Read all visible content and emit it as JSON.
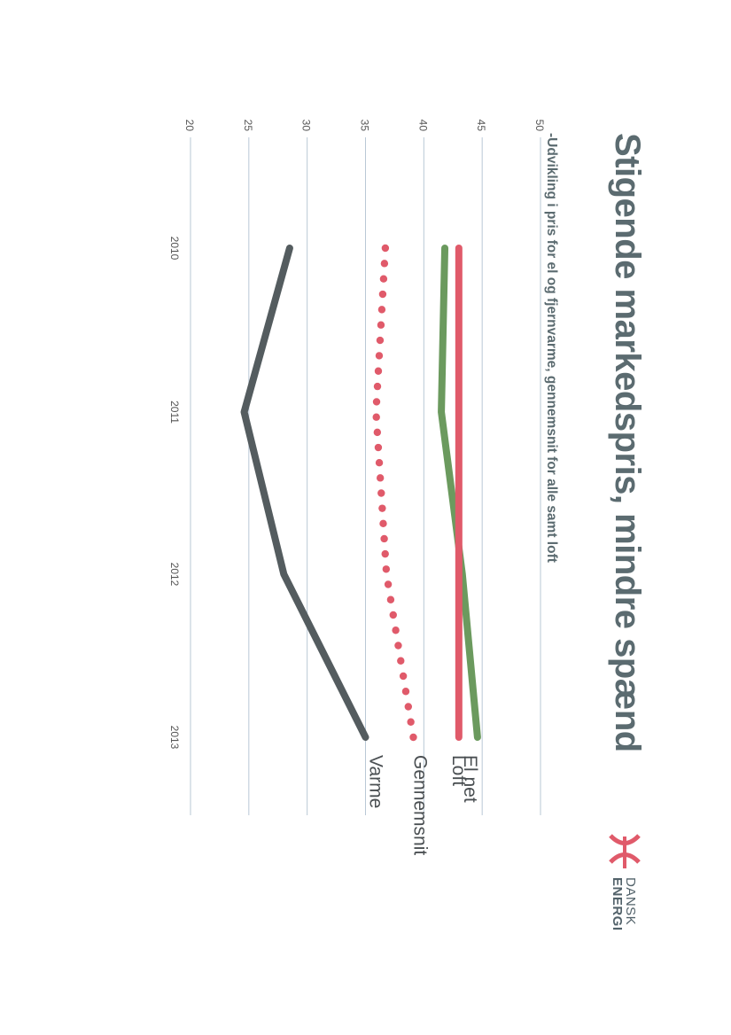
{
  "chart_data": {
    "type": "line",
    "title": "Stigende markedspris, mindre spænd",
    "subtitle": "-Udvikling i pris for el og fjernvarme, gennemsnit for alle samt loft",
    "x": [
      "2010",
      "2011",
      "2012",
      "2013"
    ],
    "ylim": [
      20,
      50
    ],
    "yticks": [
      20,
      25,
      30,
      35,
      40,
      45,
      50
    ],
    "grid": true,
    "legend": "end-of-line labels",
    "series": [
      {
        "name": "El net",
        "values": [
          41.8,
          41.5,
          43.3,
          44.6
        ],
        "color": "#6b9a5e",
        "style": "solid"
      },
      {
        "name": "Loft",
        "values": [
          43.0,
          43.0,
          43.0,
          43.0
        ],
        "color": "#e05a6a",
        "style": "solid"
      },
      {
        "name": "Gennemsnit",
        "values": [
          36.7,
          35.9,
          36.8,
          39.1
        ],
        "color": "#e05a6a",
        "style": "dotted"
      },
      {
        "name": "Varme",
        "values": [
          28.5,
          24.6,
          28.0,
          35.0
        ],
        "color": "#545c5f",
        "style": "solid"
      }
    ]
  },
  "logo": {
    "line1": "DANSK",
    "line2": "ENERGI",
    "mark_color": "#e05a6a"
  }
}
